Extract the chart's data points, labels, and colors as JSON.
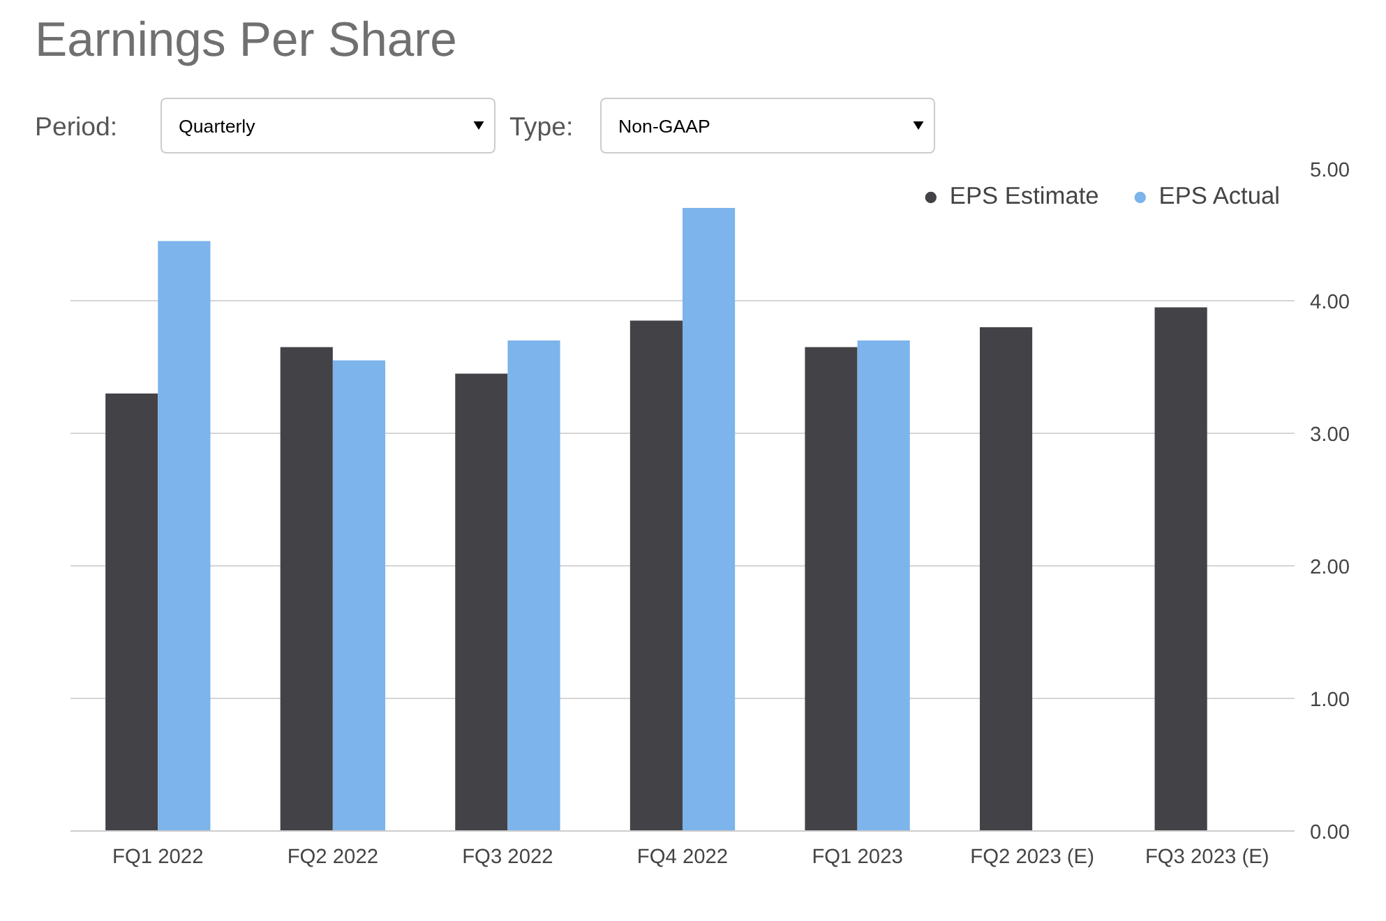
{
  "chart_data": {
    "type": "bar",
    "title": "Earnings Per Share",
    "annotations": [
      "Period:",
      "Quarterly",
      "Type:",
      "Non-GAAP"
    ],
    "categories": [
      "FQ1 2022",
      "FQ2 2022",
      "FQ3 2022",
      "FQ4 2022",
      "FQ1 2023",
      "FQ2 2023 (E)",
      "FQ3 2023 (E)"
    ],
    "series": [
      {
        "name": "EPS Estimate",
        "color": "#434247",
        "values": [
          3.3,
          3.65,
          3.45,
          3.85,
          3.65,
          3.8,
          3.95
        ]
      },
      {
        "name": "EPS Actual",
        "color": "#7cb4eb",
        "values": [
          4.45,
          3.55,
          3.7,
          4.7,
          3.7,
          null,
          null
        ]
      }
    ],
    "ylim": [
      0,
      5
    ],
    "yticks": [
      {
        "value": 0,
        "label": "0.00"
      },
      {
        "value": 1,
        "label": "1.00"
      },
      {
        "value": 2,
        "label": "2.00"
      },
      {
        "value": 3,
        "label": "3.00"
      },
      {
        "value": 4,
        "label": "4.00"
      },
      {
        "value": 5,
        "label": "5.00"
      }
    ],
    "grid": "y",
    "legend": "top right"
  }
}
